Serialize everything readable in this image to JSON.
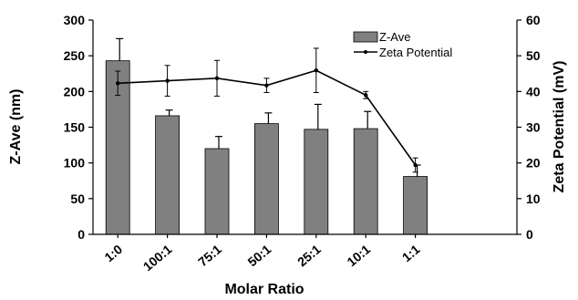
{
  "chart_data": {
    "type": "bar",
    "categories": [
      "1:0",
      "100:1",
      "75:1",
      "50:1",
      "25:1",
      "10:1",
      "1:1"
    ],
    "xlabel": "Molar Ratio",
    "ylabel_left": "Z-Ave (nm)",
    "ylabel_right": "Zeta Potential (mV)",
    "ylim_left": [
      0,
      300
    ],
    "ylim_right": [
      0,
      60
    ],
    "yticks_left": [
      "0",
      "50",
      "100",
      "150",
      "200",
      "250",
      "300"
    ],
    "yticks_right": [
      "0",
      "10",
      "20",
      "30",
      "40",
      "50",
      "60"
    ],
    "legend_position": "top-right",
    "grid": false,
    "series": [
      {
        "name": "Z-Ave",
        "kind": "bar",
        "axis": "left",
        "color": "#808080",
        "values": [
          243,
          166,
          120,
          155,
          147,
          148,
          81
        ],
        "errors": [
          31,
          8,
          17,
          15,
          35,
          24,
          16
        ]
      },
      {
        "name": "Zeta Potential",
        "kind": "line",
        "axis": "right",
        "color": "#000000",
        "values": [
          42.3,
          43.0,
          43.7,
          41.7,
          45.9,
          39.0,
          19.4
        ],
        "errors": [
          3.4,
          4.3,
          5.0,
          2.0,
          6.2,
          1.0,
          2.0
        ]
      }
    ]
  }
}
